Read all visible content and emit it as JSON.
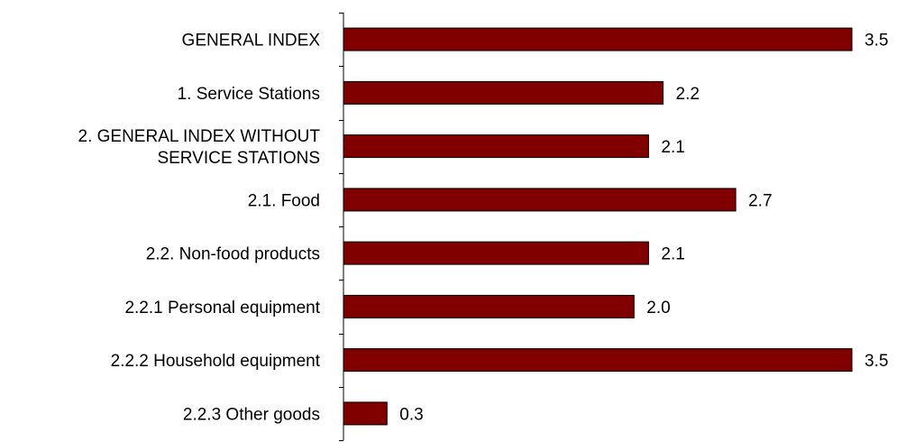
{
  "chart_data": {
    "type": "bar",
    "orientation": "horizontal",
    "categories": [
      [
        "GENERAL INDEX"
      ],
      [
        "1. Service Stations"
      ],
      [
        "2. GENERAL INDEX WITHOUT",
        "SERVICE STATIONS"
      ],
      [
        "2.1. Food"
      ],
      [
        "2.2. Non-food  products"
      ],
      [
        "2.2.1 Personal  equipment"
      ],
      [
        "2.2.2 Household  equipment"
      ],
      [
        "2.2.3 Other goods"
      ]
    ],
    "values": [
      3.5,
      2.2,
      2.1,
      2.7,
      2.1,
      2.0,
      3.5,
      0.3
    ],
    "value_labels": [
      "3.5",
      "2.2",
      "2.1",
      "2.7",
      "2.1",
      "2.0",
      "3.5",
      "0.3"
    ],
    "xlim": [
      0,
      3.5
    ],
    "grid": false,
    "legend": "none",
    "colors": {
      "bar_fill": "#800000",
      "bar_stroke": "#000000",
      "axis": "#000000"
    }
  }
}
